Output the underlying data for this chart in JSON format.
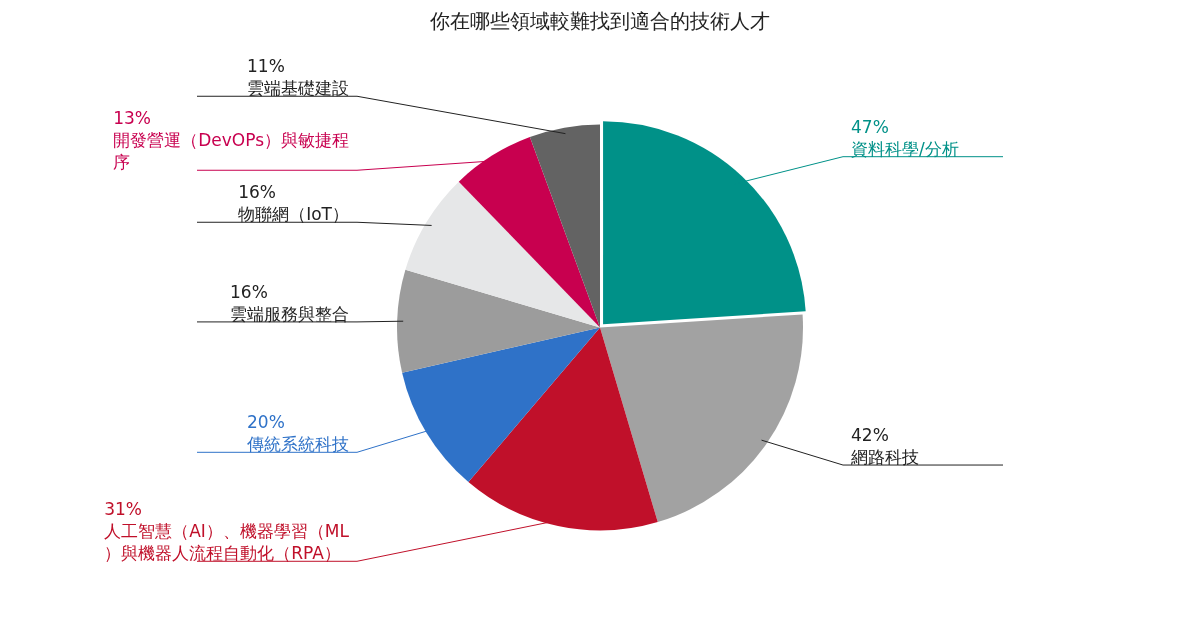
{
  "chart_data": {
    "type": "pie",
    "title": "你在哪些領域較難找到適合的技術人才",
    "categories": [
      "資料科學/分析",
      "網路科技",
      "人工智慧（AI）、機器學習（ML）與機器人流程自動化（RPA）",
      "傳統系統科技",
      "雲端服務與整合",
      "物聯網（IoT）",
      "開發營運（DevOPs）與敏捷程序",
      "雲端基礎建設"
    ],
    "values": [
      47,
      42,
      31,
      20,
      16,
      16,
      13,
      11
    ],
    "value_labels": [
      "47%",
      "42%",
      "31%",
      "20%",
      "16%",
      "16%",
      "13%",
      "11%"
    ],
    "colors": [
      "#009188",
      "#a2a2a2",
      "#c0102a",
      "#2f72c8",
      "#9c9c9c",
      "#e6e7e8",
      "#c8004f",
      "#636363"
    ],
    "legend": false
  }
}
